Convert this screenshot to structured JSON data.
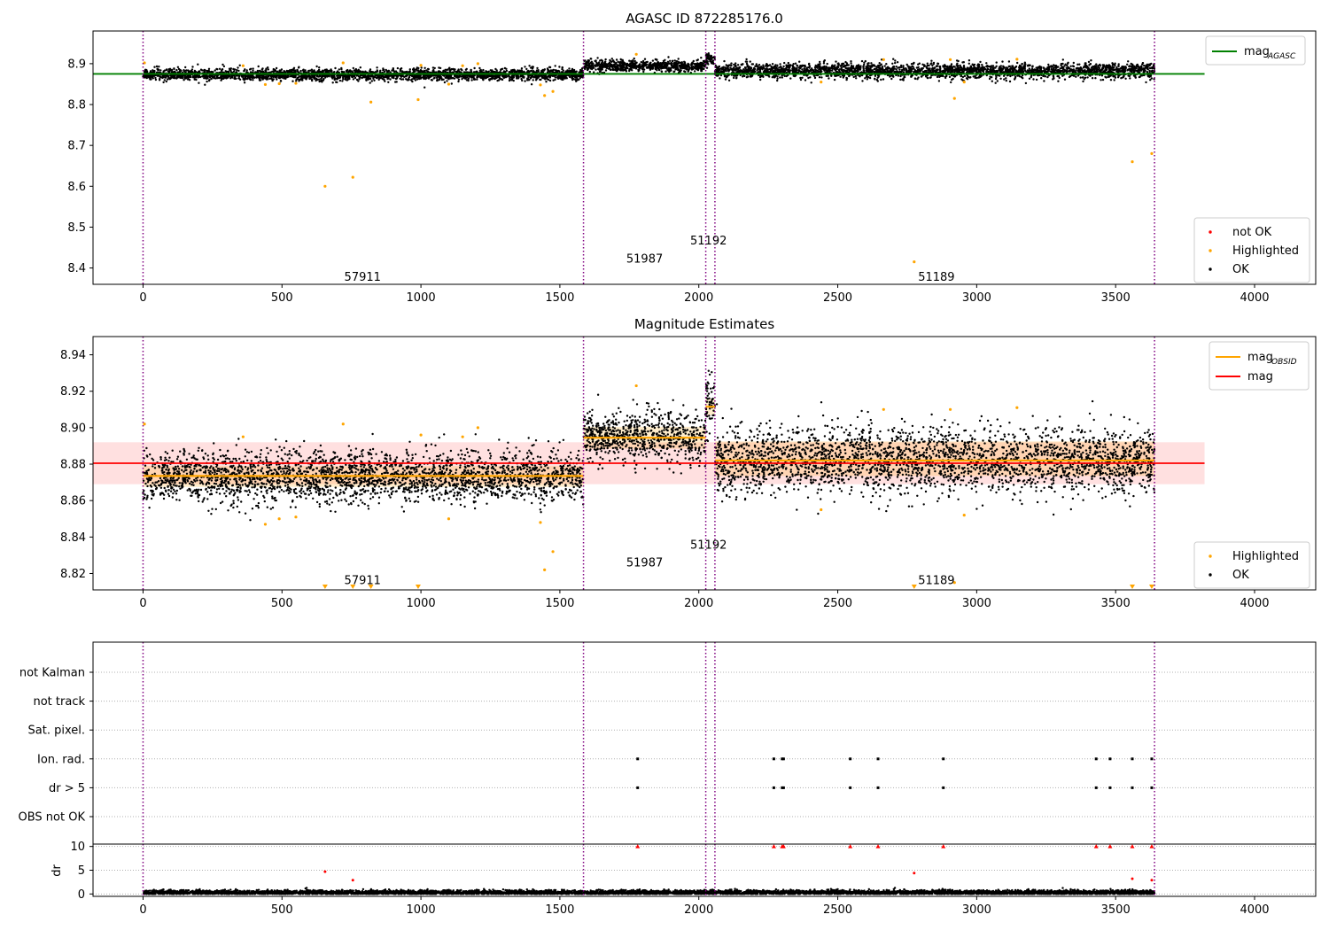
{
  "chart_data": [
    {
      "type": "scatter",
      "title": "AGASC ID 872285176.0",
      "xlim": [
        -180,
        4220
      ],
      "ylim": [
        8.36,
        8.98
      ],
      "xticks": [
        0,
        500,
        1000,
        1500,
        2000,
        2500,
        3000,
        3500,
        4000
      ],
      "yticks": [
        8.4,
        8.5,
        8.6,
        8.7,
        8.8,
        8.9
      ],
      "ytick_labels": [
        "8.4",
        "8.5",
        "8.6",
        "8.7",
        "8.8",
        "8.9"
      ],
      "obs_boundaries": [
        0,
        1585,
        2025,
        2058,
        3640
      ],
      "obs_labels": [
        {
          "text": "57911",
          "x": 790,
          "y": 8.38
        },
        {
          "text": "51987",
          "x": 1805,
          "y": 8.424
        },
        {
          "text": "51192",
          "x": 2035,
          "y": 8.468
        },
        {
          "text": "51189",
          "x": 2855,
          "y": 8.38
        }
      ],
      "hline": {
        "name": "mag_AGASC",
        "y": 8.875,
        "x": [
          -180,
          3820
        ],
        "color": "#008000"
      },
      "ok_segments": [
        {
          "x": [
            0,
            1585
          ],
          "mean": 8.873,
          "spread": 0.007
        },
        {
          "x": [
            1585,
            2025
          ],
          "mean": 8.895,
          "spread": 0.007
        },
        {
          "x": [
            2025,
            2058
          ],
          "mean": 8.912,
          "spread": 0.008
        },
        {
          "x": [
            2058,
            3640
          ],
          "mean": 8.882,
          "spread": 0.009
        }
      ],
      "highlighted": [
        {
          "x": 5,
          "y": 8.902
        },
        {
          "x": 360,
          "y": 8.895
        },
        {
          "x": 440,
          "y": 8.849
        },
        {
          "x": 490,
          "y": 8.851
        },
        {
          "x": 550,
          "y": 8.852
        },
        {
          "x": 655,
          "y": 8.6
        },
        {
          "x": 720,
          "y": 8.902
        },
        {
          "x": 755,
          "y": 8.622
        },
        {
          "x": 820,
          "y": 8.806
        },
        {
          "x": 990,
          "y": 8.812
        },
        {
          "x": 1000,
          "y": 8.896
        },
        {
          "x": 1100,
          "y": 8.85
        },
        {
          "x": 1150,
          "y": 8.895
        },
        {
          "x": 1205,
          "y": 8.9
        },
        {
          "x": 1430,
          "y": 8.848
        },
        {
          "x": 1445,
          "y": 8.822
        },
        {
          "x": 1475,
          "y": 8.832
        },
        {
          "x": 1775,
          "y": 8.923
        },
        {
          "x": 2440,
          "y": 8.855
        },
        {
          "x": 2665,
          "y": 8.91
        },
        {
          "x": 2775,
          "y": 8.415
        },
        {
          "x": 2905,
          "y": 8.91
        },
        {
          "x": 2920,
          "y": 8.815
        },
        {
          "x": 2955,
          "y": 8.855
        },
        {
          "x": 3145,
          "y": 8.911
        },
        {
          "x": 3560,
          "y": 8.66
        },
        {
          "x": 3630,
          "y": 8.68
        }
      ],
      "legend_lines": [
        {
          "name": "mag",
          "subscript": "AGASC",
          "color": "#008000"
        }
      ],
      "legend_points": [
        {
          "name": "not OK",
          "color": "#ff0000"
        },
        {
          "name": "Highlighted",
          "color": "#ffa500"
        },
        {
          "name": "OK",
          "color": "#000000"
        }
      ],
      "legend_lines_placement": "upper right",
      "legend_points_placement": "lower right"
    },
    {
      "type": "scatter",
      "title": "Magnitude Estimates",
      "xlim": [
        -180,
        4220
      ],
      "ylim": [
        8.811,
        8.95
      ],
      "xticks": [
        0,
        500,
        1000,
        1500,
        2000,
        2500,
        3000,
        3500,
        4000
      ],
      "yticks": [
        8.82,
        8.84,
        8.86,
        8.88,
        8.9,
        8.92,
        8.94
      ],
      "ytick_labels": [
        "8.82",
        "8.84",
        "8.86",
        "8.88",
        "8.90",
        "8.92",
        "8.94"
      ],
      "obs_boundaries": [
        0,
        1585,
        2025,
        2058,
        3640
      ],
      "obs_labels": [
        {
          "text": "57911",
          "x": 790,
          "y": 8.8165
        },
        {
          "text": "51987",
          "x": 1805,
          "y": 8.8262
        },
        {
          "text": "51192",
          "x": 2035,
          "y": 8.836
        },
        {
          "text": "51189",
          "x": 2855,
          "y": 8.8165
        }
      ],
      "mag_line": {
        "name": "mag",
        "y": 8.8805,
        "band": [
          8.869,
          8.892
        ],
        "x": [
          -180,
          3820
        ],
        "color": "#ff0000"
      },
      "mag_obsid": [
        {
          "x": [
            0,
            1585
          ],
          "y": 8.8735,
          "band": [
            8.8675,
            8.879
          ]
        },
        {
          "x": [
            1585,
            2025
          ],
          "y": 8.8945,
          "band": [
            8.8885,
            8.9005
          ]
        },
        {
          "x": [
            2025,
            2058
          ],
          "y": 8.9115,
          "band": [
            8.907,
            8.916
          ]
        },
        {
          "x": [
            2058,
            3640
          ],
          "y": 8.882,
          "band": [
            8.8735,
            8.8925
          ]
        }
      ],
      "ok_segments": [
        {
          "x": [
            0,
            1585
          ],
          "mean": 8.873,
          "spread": 0.007
        },
        {
          "x": [
            1585,
            2025
          ],
          "mean": 8.895,
          "spread": 0.007
        },
        {
          "x": [
            2025,
            2058
          ],
          "mean": 8.912,
          "spread": 0.008
        },
        {
          "x": [
            2058,
            3640
          ],
          "mean": 8.882,
          "spread": 0.009
        }
      ],
      "highlighted": [
        {
          "x": 5,
          "y": 8.902
        },
        {
          "x": 360,
          "y": 8.895
        },
        {
          "x": 440,
          "y": 8.847
        },
        {
          "x": 490,
          "y": 8.85
        },
        {
          "x": 550,
          "y": 8.851
        },
        {
          "x": 720,
          "y": 8.902
        },
        {
          "x": 1000,
          "y": 8.896
        },
        {
          "x": 1100,
          "y": 8.85
        },
        {
          "x": 1150,
          "y": 8.895
        },
        {
          "x": 1205,
          "y": 8.9
        },
        {
          "x": 1430,
          "y": 8.848
        },
        {
          "x": 1445,
          "y": 8.822
        },
        {
          "x": 1475,
          "y": 8.832
        },
        {
          "x": 1775,
          "y": 8.923
        },
        {
          "x": 2440,
          "y": 8.855
        },
        {
          "x": 2665,
          "y": 8.91
        },
        {
          "x": 2905,
          "y": 8.91
        },
        {
          "x": 2920,
          "y": 8.815
        },
        {
          "x": 2955,
          "y": 8.852
        },
        {
          "x": 3145,
          "y": 8.911
        }
      ],
      "offscale_markers": [
        655,
        755,
        820,
        990,
        2775,
        3560,
        3630
      ],
      "legend_lines": [
        {
          "name": "mag",
          "subscript": "OBSID",
          "color": "#ffa500"
        },
        {
          "name": "mag",
          "subscript": "",
          "color": "#ff0000"
        }
      ],
      "legend_points": [
        {
          "name": "Highlighted",
          "color": "#ffa500"
        },
        {
          "name": "OK",
          "color": "#000000"
        }
      ],
      "legend_lines_placement": "upper right",
      "legend_points_placement": "lower right"
    },
    {
      "type": "scatter",
      "xlim": [
        -180,
        4220
      ],
      "xticks": [
        0,
        500,
        1000,
        1500,
        2000,
        2500,
        3000,
        3500,
        4000
      ],
      "flag_rows": [
        "not Kalman",
        "not track",
        "Sat. pixel.",
        "Ion. rad.",
        "dr > 5",
        "OBS not OK"
      ],
      "flag_events": {
        "Ion. rad.": [
          1780,
          2270,
          2300,
          2305,
          2545,
          2645,
          2880,
          3430,
          3480,
          3560,
          3630
        ],
        "dr > 5": [
          1780,
          2270,
          2300,
          2305,
          2545,
          2645,
          2880,
          3430,
          3480,
          3560,
          3630
        ]
      },
      "obs_boundaries": [
        0,
        1585,
        2025,
        2058,
        3640
      ]
    },
    {
      "type": "scatter",
      "ylabel": "dr",
      "xlim": [
        -180,
        4220
      ],
      "ylim": [
        -0.5,
        10.5
      ],
      "xticks": [
        0,
        500,
        1000,
        1500,
        2000,
        2500,
        3000,
        3500,
        4000
      ],
      "yticks": [
        0,
        5,
        10
      ],
      "ok_band": {
        "x": [
          0,
          3640
        ],
        "mean": 0.3,
        "spread": 0.25
      },
      "clipped_at_10": [
        1780,
        2270,
        2300,
        2305,
        2545,
        2645,
        2880,
        3430,
        3480,
        3560,
        3630
      ],
      "red_points": [
        {
          "x": 655,
          "y": 4.7
        },
        {
          "x": 755,
          "y": 2.9
        },
        {
          "x": 2775,
          "y": 4.4
        },
        {
          "x": 3560,
          "y": 3.2
        },
        {
          "x": 3630,
          "y": 2.9
        }
      ],
      "obs_boundaries": [
        0,
        1585,
        2025,
        2058,
        3640
      ]
    }
  ]
}
